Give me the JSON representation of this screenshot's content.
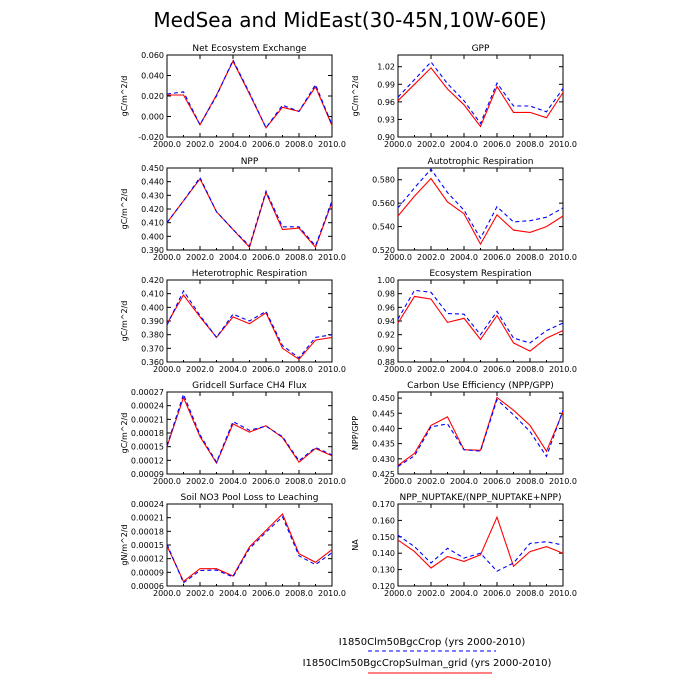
{
  "title": "MedSea and MidEast(30-45N,10W-60E)",
  "legend": {
    "entries": [
      {
        "label": "I1850Clm50BgcCrop (yrs 2000-2010)",
        "color": "#0000ff",
        "dash": true
      },
      {
        "label": "I1850Clm50BgcCropSulman_grid (yrs 2000-2010)",
        "color": "#ff0000",
        "dash": false
      }
    ]
  },
  "chart_data": [
    {
      "type": "line",
      "title": "Net Ecosystem Exchange",
      "ylabel": "gC/m^2/d",
      "x": [
        2000,
        2001,
        2002,
        2003,
        2004,
        2005,
        2006,
        2007,
        2008,
        2009,
        2010
      ],
      "xlim": [
        2000,
        2010
      ],
      "xticks": [
        "2000.0",
        "2002.0",
        "2004.0",
        "2006.0",
        "2008.0",
        "2010.0"
      ],
      "ylim": [
        -0.02,
        0.06
      ],
      "yticks": [
        "-0.020",
        "0.000",
        "0.020",
        "0.040",
        "0.060"
      ],
      "series": [
        {
          "name": "I1850Clm50BgcCrop (yrs 2000-2010)",
          "color": "#0000ff",
          "values": [
            0.022,
            0.024,
            -0.008,
            0.02,
            0.055,
            0.023,
            -0.011,
            0.011,
            0.005,
            0.031,
            -0.008
          ]
        },
        {
          "name": "I1850Clm50BgcCropSulman_grid (yrs 2000-2010)",
          "color": "#ff0000",
          "values": [
            0.021,
            0.021,
            -0.008,
            0.021,
            0.054,
            0.022,
            -0.011,
            0.009,
            0.005,
            0.029,
            -0.009
          ]
        }
      ]
    },
    {
      "type": "line",
      "title": "GPP",
      "ylabel": "gC/m^2/d",
      "x": [
        2000,
        2001,
        2002,
        2003,
        2004,
        2005,
        2006,
        2007,
        2008,
        2009,
        2010
      ],
      "xlim": [
        2000,
        2010
      ],
      "xticks": [
        "2000.0",
        "2002.0",
        "2004.0",
        "2006.0",
        "2008.0",
        "2010.0"
      ],
      "ylim": [
        0.9,
        1.04
      ],
      "yticks": [
        "0.90",
        "0.93",
        "0.96",
        "0.99",
        "1.02"
      ],
      "series": [
        {
          "name": "I1850Clm50BgcCrop (yrs 2000-2010)",
          "color": "#0000ff",
          "values": [
            0.968,
            0.998,
            1.028,
            0.991,
            0.962,
            0.923,
            0.992,
            0.953,
            0.953,
            0.943,
            0.983
          ]
        },
        {
          "name": "I1850Clm50BgcCropSulman_grid (yrs 2000-2010)",
          "color": "#ff0000",
          "values": [
            0.962,
            0.99,
            1.018,
            0.982,
            0.955,
            0.918,
            0.986,
            0.942,
            0.942,
            0.933,
            0.976
          ]
        }
      ]
    },
    {
      "type": "line",
      "title": "NPP",
      "ylabel": "gC/m^2/d",
      "x": [
        2000,
        2001,
        2002,
        2003,
        2004,
        2005,
        2006,
        2007,
        2008,
        2009,
        2010
      ],
      "xlim": [
        2000,
        2010
      ],
      "xticks": [
        "2000.0",
        "2002.0",
        "2004.0",
        "2006.0",
        "2008.0",
        "2010.0"
      ],
      "ylim": [
        0.39,
        0.45
      ],
      "yticks": [
        "0.390",
        "0.400",
        "0.410",
        "0.420",
        "0.430",
        "0.440",
        "0.450"
      ],
      "series": [
        {
          "name": "I1850Clm50BgcCrop (yrs 2000-2010)",
          "color": "#0000ff",
          "values": [
            0.41,
            0.426,
            0.443,
            0.418,
            0.405,
            0.393,
            0.433,
            0.407,
            0.407,
            0.393,
            0.426
          ]
        },
        {
          "name": "I1850Clm50BgcCropSulman_grid (yrs 2000-2010)",
          "color": "#ff0000",
          "values": [
            0.41,
            0.426,
            0.442,
            0.418,
            0.405,
            0.392,
            0.432,
            0.405,
            0.406,
            0.392,
            0.425
          ]
        }
      ]
    },
    {
      "type": "line",
      "title": "Autotrophic Respiration",
      "ylabel": "",
      "x": [
        2000,
        2001,
        2002,
        2003,
        2004,
        2005,
        2006,
        2007,
        2008,
        2009,
        2010
      ],
      "xlim": [
        2000,
        2010
      ],
      "xticks": [
        "2000.0",
        "2002.0",
        "2004.0",
        "2006.0",
        "2008.0",
        "2010.0"
      ],
      "ylim": [
        0.52,
        0.59
      ],
      "yticks": [
        "0.520",
        "0.540",
        "0.560",
        "0.580"
      ],
      "series": [
        {
          "name": "I1850Clm50BgcCrop (yrs 2000-2010)",
          "color": "#0000ff",
          "values": [
            0.556,
            0.573,
            0.589,
            0.569,
            0.554,
            0.53,
            0.557,
            0.544,
            0.545,
            0.548,
            0.556
          ]
        },
        {
          "name": "I1850Clm50BgcCropSulman_grid (yrs 2000-2010)",
          "color": "#ff0000",
          "values": [
            0.549,
            0.566,
            0.581,
            0.561,
            0.551,
            0.525,
            0.55,
            0.537,
            0.535,
            0.54,
            0.549
          ]
        }
      ]
    },
    {
      "type": "line",
      "title": "Heterotrophic Respiration",
      "ylabel": "gC/m^2/d",
      "x": [
        2000,
        2001,
        2002,
        2003,
        2004,
        2005,
        2006,
        2007,
        2008,
        2009,
        2010
      ],
      "xlim": [
        2000,
        2010
      ],
      "xticks": [
        "2000.0",
        "2002.0",
        "2004.0",
        "2006.0",
        "2008.0",
        "2010.0"
      ],
      "ylim": [
        0.36,
        0.42
      ],
      "yticks": [
        "0.360",
        "0.370",
        "0.380",
        "0.390",
        "0.400",
        "0.410",
        "0.420"
      ],
      "series": [
        {
          "name": "I1850Clm50BgcCrop (yrs 2000-2010)",
          "color": "#0000ff",
          "values": [
            0.387,
            0.412,
            0.394,
            0.378,
            0.395,
            0.39,
            0.397,
            0.372,
            0.363,
            0.378,
            0.38
          ]
        },
        {
          "name": "I1850Clm50BgcCropSulman_grid (yrs 2000-2010)",
          "color": "#ff0000",
          "values": [
            0.388,
            0.409,
            0.393,
            0.378,
            0.393,
            0.388,
            0.396,
            0.37,
            0.362,
            0.376,
            0.378
          ]
        }
      ]
    },
    {
      "type": "line",
      "title": "Ecosystem Respiration",
      "ylabel": "",
      "x": [
        2000,
        2001,
        2002,
        2003,
        2004,
        2005,
        2006,
        2007,
        2008,
        2009,
        2010
      ],
      "xlim": [
        2000,
        2010
      ],
      "xticks": [
        "2000.0",
        "2002.0",
        "2004.0",
        "2006.0",
        "2008.0",
        "2010.0"
      ],
      "ylim": [
        0.88,
        1.0
      ],
      "yticks": [
        "0.88",
        "0.90",
        "0.92",
        "0.94",
        "0.96",
        "0.98",
        "1.00"
      ],
      "series": [
        {
          "name": "I1850Clm50BgcCrop (yrs 2000-2010)",
          "color": "#0000ff",
          "values": [
            0.943,
            0.985,
            0.982,
            0.951,
            0.95,
            0.92,
            0.954,
            0.915,
            0.908,
            0.926,
            0.937
          ]
        },
        {
          "name": "I1850Clm50BgcCropSulman_grid (yrs 2000-2010)",
          "color": "#ff0000",
          "values": [
            0.937,
            0.976,
            0.972,
            0.938,
            0.944,
            0.913,
            0.948,
            0.908,
            0.896,
            0.915,
            0.926
          ]
        }
      ]
    },
    {
      "type": "line",
      "title": "Gridcell Surface CH4 Flux",
      "ylabel": "gC/m^2/d",
      "x": [
        2000,
        2001,
        2002,
        2003,
        2004,
        2005,
        2006,
        2007,
        2008,
        2009,
        2010
      ],
      "xlim": [
        2000,
        2010
      ],
      "xticks": [
        "2000.0",
        "2002.0",
        "2004.0",
        "2006.0",
        "2008.0",
        "2010.0"
      ],
      "ylim": [
        9e-05,
        0.00027
      ],
      "yticks": [
        "0.00009",
        "0.00012",
        "0.00015",
        "0.00018",
        "0.00021",
        "0.00024",
        "0.00027"
      ],
      "series": [
        {
          "name": "I1850Clm50BgcCrop (yrs 2000-2010)",
          "color": "#0000ff",
          "values": [
            0.000152,
            0.000265,
            0.000176,
            0.000116,
            0.000205,
            0.000186,
            0.000195,
            0.000172,
            0.000119,
            0.000148,
            0.000132
          ]
        },
        {
          "name": "I1850Clm50BgcCropSulman_grid (yrs 2000-2010)",
          "color": "#ff0000",
          "values": [
            0.00015,
            0.000258,
            0.000172,
            0.000114,
            0.0002,
            0.000182,
            0.000196,
            0.00017,
            0.000116,
            0.000146,
            0.00013
          ]
        }
      ]
    },
    {
      "type": "line",
      "title": "Carbon Use Efficiency (NPP/GPP)",
      "ylabel": "NPP/GPP",
      "x": [
        2000,
        2001,
        2002,
        2003,
        2004,
        2005,
        2006,
        2007,
        2008,
        2009,
        2010
      ],
      "xlim": [
        2000,
        2010
      ],
      "xticks": [
        "2000.0",
        "2002.0",
        "2004.0",
        "2006.0",
        "2008.0",
        "2010.0"
      ],
      "ylim": [
        0.425,
        0.452
      ],
      "yticks": [
        "0.425",
        "0.430",
        "0.435",
        "0.440",
        "0.445",
        "0.450"
      ],
      "series": [
        {
          "name": "I1850Clm50BgcCrop (yrs 2000-2010)",
          "color": "#0000ff",
          "values": [
            0.4275,
            0.431,
            0.4405,
            0.4415,
            0.433,
            0.4325,
            0.4495,
            0.4445,
            0.439,
            0.4308,
            0.446
          ]
        },
        {
          "name": "I1850Clm50BgcCropSulman_grid (yrs 2000-2010)",
          "color": "#ff0000",
          "values": [
            0.4278,
            0.4318,
            0.441,
            0.4438,
            0.433,
            0.4328,
            0.4502,
            0.446,
            0.441,
            0.4325,
            0.4455
          ]
        }
      ]
    },
    {
      "type": "line",
      "title": "Soil NO3 Pool Loss to Leaching",
      "ylabel": "gN/m^2/d",
      "x": [
        2000,
        2001,
        2002,
        2003,
        2004,
        2005,
        2006,
        2007,
        2008,
        2009,
        2010
      ],
      "xlim": [
        2000,
        2010
      ],
      "xticks": [
        "2000.0",
        "2002.0",
        "2004.0",
        "2006.0",
        "2008.0",
        "2010.0"
      ],
      "ylim": [
        6e-05,
        0.00024
      ],
      "yticks": [
        "0.00006",
        "0.00009",
        "0.00012",
        "0.00015",
        "0.00018",
        "0.00021",
        "0.00024"
      ],
      "series": [
        {
          "name": "I1850Clm50BgcCrop (yrs 2000-2010)",
          "color": "#0000ff",
          "values": [
            0.000152,
            6.7e-05,
            9.4e-05,
            9.5e-05,
            8e-05,
            0.000142,
            0.000178,
            0.000212,
            0.000126,
            0.000107,
            0.000133
          ]
        },
        {
          "name": "I1850Clm50BgcCropSulman_grid (yrs 2000-2010)",
          "color": "#ff0000",
          "values": [
            0.000148,
            7e-05,
            9.8e-05,
            9.8e-05,
            8.2e-05,
            0.000146,
            0.000182,
            0.000218,
            0.000131,
            0.000112,
            0.00014
          ]
        }
      ]
    },
    {
      "type": "line",
      "title": "NPP_NUPTAKE/(NPP_NUPTAKE+NPP)",
      "ylabel": "NA",
      "x": [
        2000,
        2001,
        2002,
        2003,
        2004,
        2005,
        2006,
        2007,
        2008,
        2009,
        2010
      ],
      "xlim": [
        2000,
        2010
      ],
      "xticks": [
        "2000.0",
        "2002.0",
        "2004.0",
        "2006.0",
        "2008.0",
        "2010.0"
      ],
      "ylim": [
        0.12,
        0.17
      ],
      "yticks": [
        "0.120",
        "0.130",
        "0.140",
        "0.150",
        "0.160",
        "0.170"
      ],
      "series": [
        {
          "name": "I1850Clm50BgcCrop (yrs 2000-2010)",
          "color": "#0000ff",
          "values": [
            0.151,
            0.144,
            0.134,
            0.143,
            0.137,
            0.14,
            0.129,
            0.134,
            0.146,
            0.147,
            0.145
          ]
        },
        {
          "name": "I1850Clm50BgcCropSulman_grid (yrs 2000-2010)",
          "color": "#ff0000",
          "values": [
            0.148,
            0.141,
            0.131,
            0.138,
            0.135,
            0.139,
            0.162,
            0.132,
            0.141,
            0.144,
            0.14
          ]
        }
      ]
    }
  ]
}
